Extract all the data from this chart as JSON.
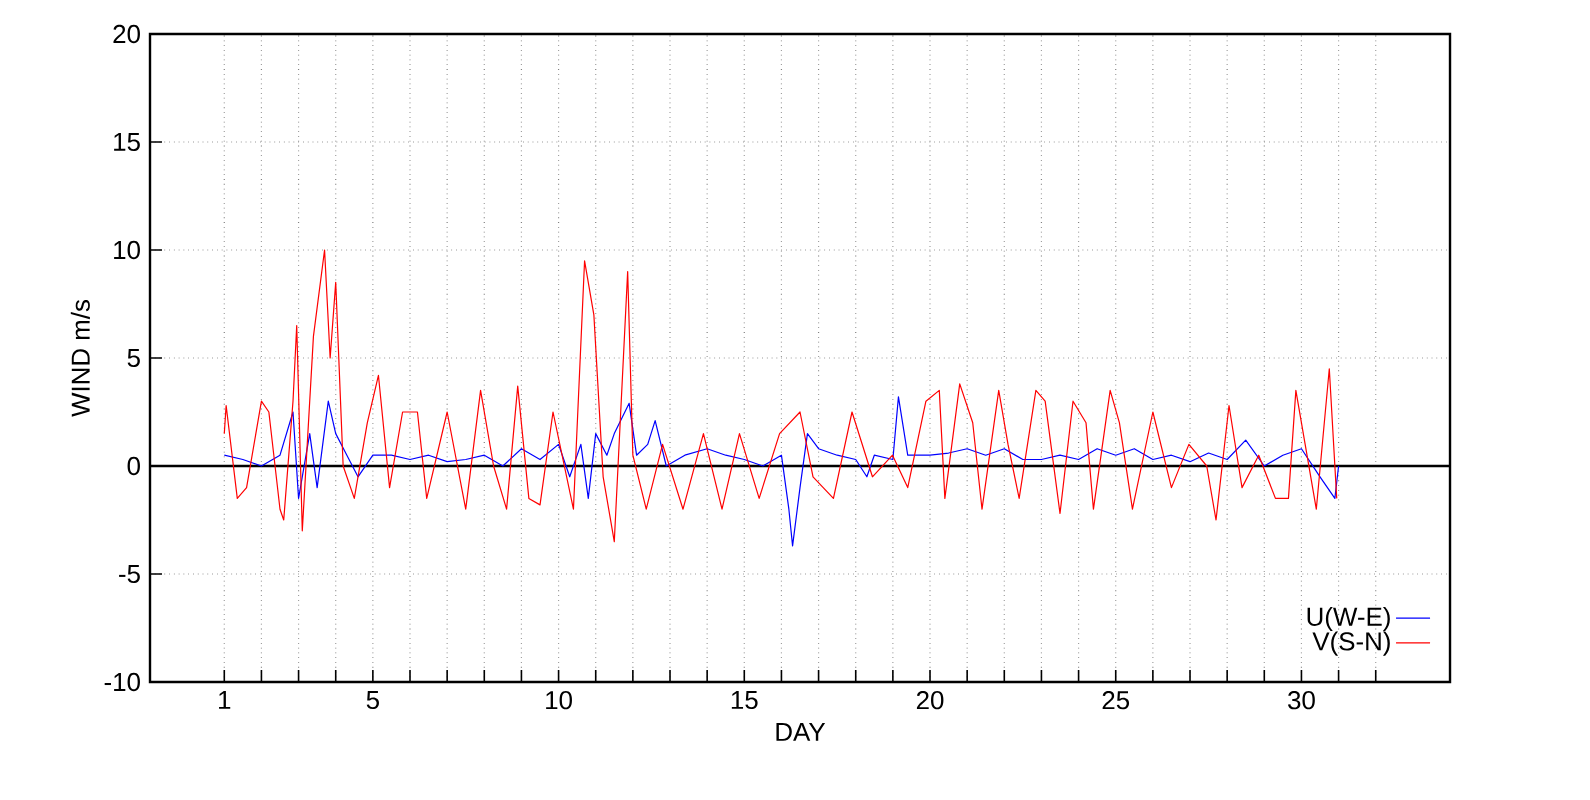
{
  "chart_data": {
    "type": "line",
    "xlabel": "DAY",
    "ylabel": "WIND m/s",
    "xlim": [
      -1,
      34
    ],
    "ylim": [
      -10,
      20
    ],
    "xticks": [
      1,
      {
        "value": 2,
        "label": null
      },
      {
        "value": 3,
        "label": null
      },
      {
        "value": 4,
        "label": null
      },
      5,
      {
        "value": 6,
        "label": null
      },
      {
        "value": 7,
        "label": null
      },
      {
        "value": 8,
        "label": null
      },
      {
        "value": 9,
        "label": null
      },
      10,
      {
        "value": 11,
        "label": null
      },
      {
        "value": 12,
        "label": null
      },
      {
        "value": 13,
        "label": null
      },
      {
        "value": 14,
        "label": null
      },
      15,
      {
        "value": 16,
        "label": null
      },
      {
        "value": 17,
        "label": null
      },
      {
        "value": 18,
        "label": null
      },
      {
        "value": 19,
        "label": null
      },
      20,
      {
        "value": 21,
        "label": null
      },
      {
        "value": 22,
        "label": null
      },
      {
        "value": 23,
        "label": null
      },
      {
        "value": 24,
        "label": null
      },
      25,
      {
        "value": 26,
        "label": null
      },
      {
        "value": 27,
        "label": null
      },
      {
        "value": 28,
        "label": null
      },
      {
        "value": 29,
        "label": null
      },
      30,
      {
        "value": 31,
        "label": null
      },
      {
        "value": 32,
        "label": null
      }
    ],
    "yticks": [
      -10,
      -5,
      0,
      5,
      10,
      15,
      20
    ],
    "grid": true,
    "legend": "bottom right",
    "ref_lines": [
      {
        "axis": "y",
        "value": 0,
        "color": "#000000"
      }
    ],
    "series": [
      {
        "name": "U(W-E)",
        "color": "#0000ff",
        "x": [
          1,
          1.5,
          2,
          2.5,
          2.85,
          3.0,
          3.3,
          3.5,
          3.8,
          4.0,
          4.3,
          4.6,
          5,
          5.5,
          6,
          6.5,
          7,
          7.5,
          8,
          8.5,
          9,
          9.5,
          10,
          10.3,
          10.6,
          10.8,
          11,
          11.3,
          11.5,
          11.9,
          12.1,
          12.4,
          12.6,
          12.9,
          13.4,
          14,
          14.5,
          15,
          15.5,
          16,
          16.2,
          16.3,
          16.5,
          16.7,
          17,
          17.5,
          18,
          18.3,
          18.5,
          19,
          19.15,
          19.4,
          20,
          20.5,
          21,
          21.5,
          22,
          22.5,
          23,
          23.5,
          24,
          24.5,
          25,
          25.5,
          26,
          26.5,
          27,
          27.5,
          28,
          28.5,
          29,
          29.5,
          30,
          30.5,
          30.9,
          31
        ],
        "values": [
          0.5,
          0.3,
          0,
          0.5,
          2.5,
          -1.5,
          1.5,
          -1,
          3,
          1.5,
          0.5,
          -0.5,
          0.5,
          0.5,
          0.3,
          0.5,
          0.2,
          0.3,
          0.5,
          0,
          0.8,
          0.3,
          1,
          -0.5,
          1,
          -1.5,
          1.5,
          0.5,
          1.5,
          2.9,
          0.5,
          1,
          2.1,
          0,
          0.5,
          0.8,
          0.5,
          0.3,
          0,
          0.5,
          -2,
          -3.7,
          -1,
          1.5,
          0.8,
          0.5,
          0.3,
          -0.5,
          0.5,
          0.3,
          3.2,
          0.5,
          0.5,
          0.6,
          0.8,
          0.5,
          0.8,
          0.3,
          0.3,
          0.5,
          0.3,
          0.8,
          0.5,
          0.8,
          0.3,
          0.5,
          0.2,
          0.6,
          0.3,
          1.2,
          0,
          0.5,
          0.8,
          -0.5,
          -1.5,
          0
        ]
      },
      {
        "name": "V(S-N)",
        "color": "#ff0000",
        "x": [
          1,
          1.05,
          1.35,
          1.6,
          2,
          2.2,
          2.5,
          2.6,
          2.85,
          2.95,
          3.1,
          3.4,
          3.7,
          3.85,
          4.0,
          4.2,
          4.5,
          4.85,
          5.15,
          5.45,
          5.8,
          6.2,
          6.45,
          7.0,
          7.5,
          7.9,
          8.25,
          8.6,
          8.9,
          9.2,
          9.5,
          9.85,
          10.4,
          10.7,
          10.95,
          11.2,
          11.5,
          11.86,
          12.0,
          12.36,
          12.8,
          13.35,
          13.9,
          14.4,
          14.87,
          15.4,
          15.95,
          16.5,
          16.85,
          17.4,
          17.9,
          18.45,
          18.99,
          19.4,
          19.89,
          20.25,
          20.4,
          20.8,
          21.15,
          21.4,
          21.85,
          22.1,
          22.4,
          22.85,
          23.1,
          23.5,
          23.85,
          24.2,
          24.4,
          24.85,
          25.1,
          25.45,
          26.0,
          26.5,
          26.97,
          27.45,
          27.7,
          28.05,
          28.4,
          28.85,
          29.3,
          29.65,
          29.85,
          30.1,
          30.4,
          30.75,
          30.95
        ],
        "values": [
          1.5,
          2.8,
          -1.5,
          -1,
          3,
          2.5,
          -2,
          -2.5,
          3,
          6.5,
          -3,
          6,
          10,
          5,
          8.5,
          0,
          -1.5,
          2,
          4.2,
          -1,
          2.5,
          2.5,
          -1.5,
          2.5,
          -2,
          3.5,
          0,
          -2,
          3.7,
          -1.5,
          -1.8,
          2.5,
          -2,
          9.5,
          7,
          -0.5,
          -3.5,
          9,
          0.5,
          -2,
          1,
          -2,
          1.5,
          -2,
          1.5,
          -1.5,
          1.5,
          2.5,
          -0.5,
          -1.5,
          2.5,
          -0.5,
          0.5,
          -1,
          3,
          3.5,
          -1.5,
          3.8,
          2,
          -2,
          3.5,
          1,
          -1.5,
          3.5,
          3,
          -2.2,
          3,
          2,
          -2,
          3.5,
          2,
          -2,
          2.5,
          -1,
          1,
          0,
          -2.5,
          2.8,
          -1,
          0.5,
          -1.5,
          -1.5,
          3.5,
          1,
          -2,
          4.5,
          -1.5
        ]
      }
    ]
  }
}
